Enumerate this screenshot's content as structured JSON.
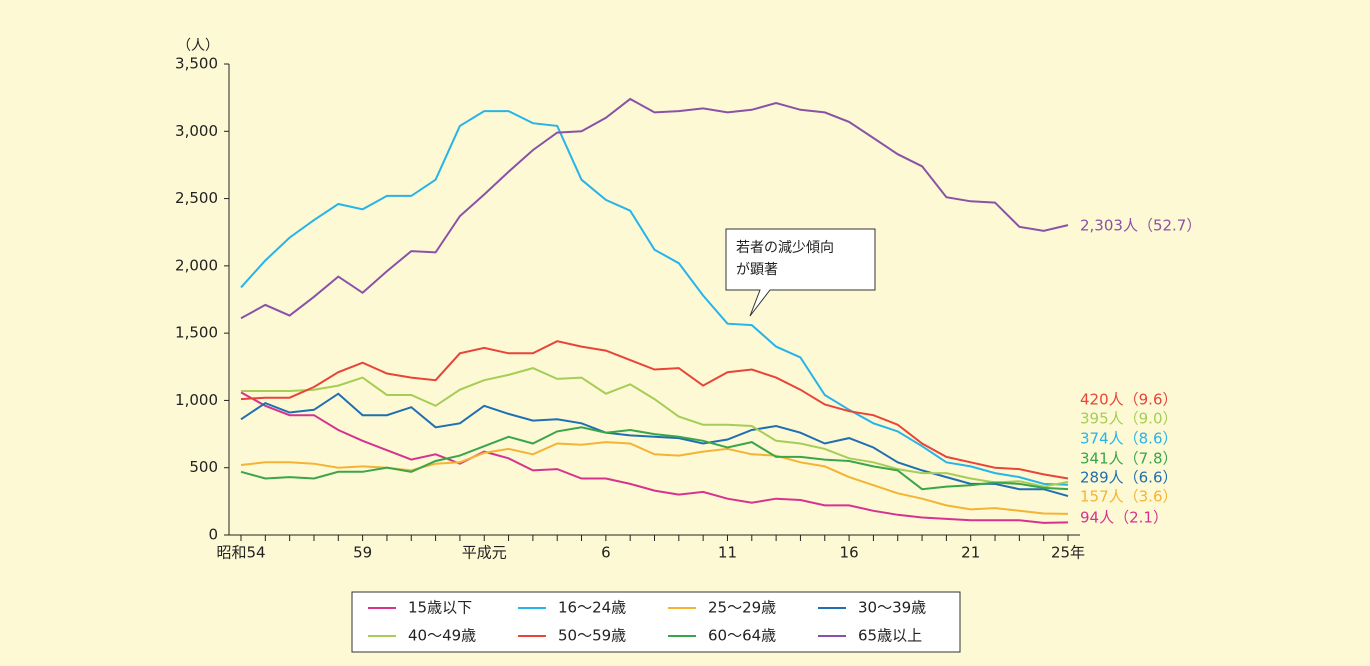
{
  "chart_data": {
    "type": "line",
    "y_label": "（人）",
    "categories": [
      "昭和54",
      null,
      null,
      null,
      null,
      "59",
      null,
      null,
      null,
      null,
      "平成元",
      null,
      null,
      null,
      null,
      "6",
      null,
      null,
      null,
      null,
      "11",
      null,
      null,
      null,
      null,
      "16",
      null,
      null,
      null,
      null,
      "21",
      null,
      null,
      null,
      "25年"
    ],
    "ylim": [
      0,
      3500
    ],
    "yticks": [
      0,
      500,
      {
        "value": 1000,
        "label": "1,000"
      },
      {
        "value": 1500,
        "label": "1,500"
      },
      {
        "value": 2000,
        "label": "2,000"
      },
      {
        "value": 2500,
        "label": "2,500"
      },
      {
        "value": 3000,
        "label": "3,000"
      },
      {
        "value": 3500,
        "label": "3,500"
      }
    ],
    "grid": false,
    "series": [
      {
        "name": "15歳以下",
        "color": "#d6338f",
        "end_label": "94人（2.1）",
        "values": [
          1060,
          960,
          890,
          890,
          780,
          700,
          630,
          560,
          600,
          530,
          620,
          570,
          480,
          490,
          420,
          420,
          380,
          330,
          300,
          320,
          270,
          240,
          270,
          260,
          220,
          220,
          180,
          150,
          130,
          120,
          110,
          110,
          110,
          90,
          94
        ]
      },
      {
        "name": "16～24歳",
        "color": "#27b4e8",
        "end_label": "374人（8.6）",
        "values": [
          1840,
          2040,
          2210,
          2340,
          2460,
          2420,
          2520,
          2520,
          2640,
          3040,
          3150,
          3150,
          3060,
          3040,
          2640,
          2490,
          2410,
          2120,
          2020,
          1780,
          1570,
          1560,
          1400,
          1320,
          1040,
          930,
          830,
          770,
          660,
          540,
          510,
          460,
          430,
          380,
          374
        ]
      },
      {
        "name": "25～29歳",
        "color": "#f5b335",
        "end_label": "157人（3.6）",
        "values": [
          520,
          540,
          540,
          530,
          500,
          510,
          500,
          480,
          530,
          540,
          610,
          640,
          600,
          680,
          670,
          690,
          680,
          600,
          590,
          620,
          640,
          600,
          590,
          540,
          510,
          430,
          370,
          310,
          270,
          220,
          190,
          200,
          180,
          160,
          157
        ]
      },
      {
        "name": "30～39歳",
        "color": "#1f6fb2",
        "end_label": "289人（6.6）",
        "values": [
          860,
          980,
          910,
          930,
          1050,
          890,
          890,
          950,
          800,
          830,
          960,
          900,
          850,
          860,
          830,
          760,
          740,
          730,
          720,
          680,
          710,
          780,
          810,
          760,
          680,
          720,
          650,
          540,
          480,
          430,
          380,
          380,
          340,
          340,
          289
        ]
      },
      {
        "name": "40～49歳",
        "color": "#a5cd58",
        "end_label": "395人（9.0）",
        "values": [
          1070,
          1070,
          1070,
          1080,
          1110,
          1170,
          1040,
          1040,
          960,
          1080,
          1150,
          1190,
          1240,
          1160,
          1170,
          1050,
          1120,
          1010,
          880,
          820,
          820,
          810,
          700,
          680,
          640,
          570,
          540,
          490,
          460,
          460,
          420,
          390,
          400,
          360,
          395
        ]
      },
      {
        "name": "50～59歳",
        "color": "#e8443a",
        "end_label": "420人（9.6）",
        "values": [
          1010,
          1020,
          1020,
          1100,
          1210,
          1280,
          1200,
          1170,
          1150,
          1350,
          1390,
          1350,
          1350,
          1440,
          1400,
          1370,
          1300,
          1230,
          1240,
          1110,
          1210,
          1230,
          1170,
          1080,
          970,
          920,
          890,
          820,
          680,
          580,
          540,
          500,
          490,
          450,
          420
        ]
      },
      {
        "name": "60～64歳",
        "color": "#3aa54a",
        "end_label": "341人（7.8）",
        "values": [
          470,
          420,
          430,
          420,
          470,
          470,
          500,
          470,
          550,
          590,
          660,
          730,
          680,
          770,
          800,
          760,
          780,
          750,
          730,
          700,
          650,
          690,
          580,
          580,
          560,
          550,
          510,
          480,
          340,
          360,
          370,
          390,
          380,
          350,
          341
        ]
      },
      {
        "name": "65歳以上",
        "color": "#8a52a6",
        "end_label": "2,303人（52.7）",
        "values": [
          1610,
          1710,
          1630,
          1770,
          1920,
          1800,
          1960,
          2110,
          2100,
          2370,
          2530,
          2700,
          2860,
          2990,
          3000,
          3100,
          3240,
          3140,
          3150,
          3170,
          3140,
          3160,
          3210,
          3160,
          3140,
          3070,
          2950,
          2830,
          2740,
          2510,
          2480,
          2470,
          2290,
          2260,
          2303
        ]
      }
    ],
    "annotation": [
      "若者の減少傾向",
      "が顕著"
    ]
  }
}
